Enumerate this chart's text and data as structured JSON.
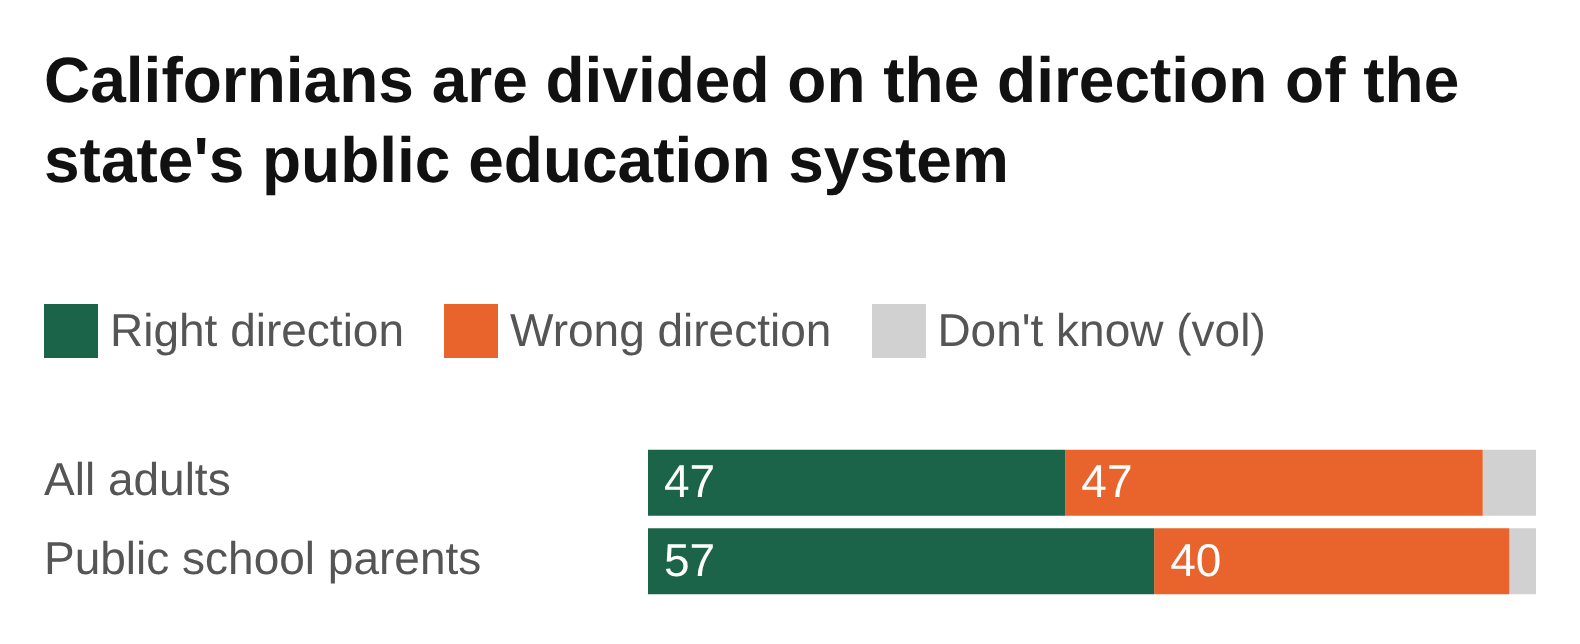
{
  "chart_data": {
    "type": "bar",
    "orientation": "horizontal",
    "stacked": true,
    "title": "Californians are divided on the direction of the state's public education system",
    "categories": [
      "All adults",
      "Public school parents"
    ],
    "series": [
      {
        "name": "Right direction",
        "color": "#1b644a",
        "values": [
          47,
          57
        ],
        "value_labels": [
          "47",
          "57"
        ]
      },
      {
        "name": "Wrong direction",
        "color": "#e9632d",
        "values": [
          47,
          40
        ],
        "value_labels": [
          "47",
          "40"
        ]
      },
      {
        "name": "Don't know (vol)",
        "color": "#d1d1d1",
        "values": [
          6,
          3
        ],
        "value_labels": [
          null,
          null
        ]
      }
    ],
    "xlim": [
      0,
      100
    ],
    "tick_labels": "y",
    "legend": "top left"
  }
}
